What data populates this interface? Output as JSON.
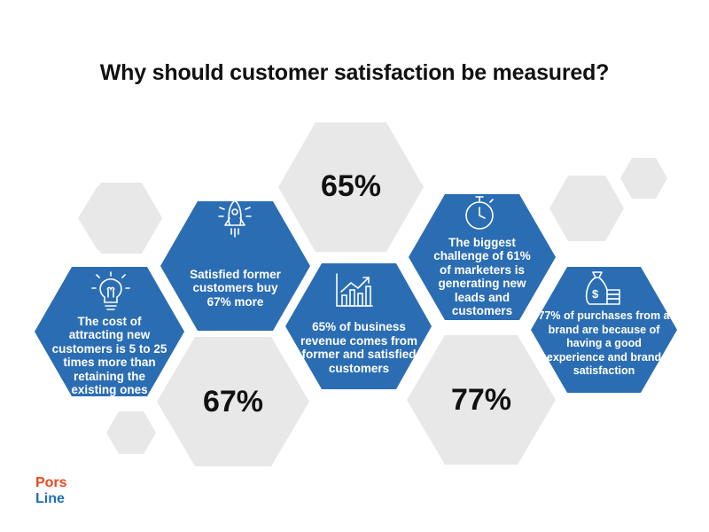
{
  "title": "Why should customer satisfaction be measured?",
  "colors": {
    "blue_hex": "#2b6db3",
    "gray_hex": "#e8e8e8",
    "text_white": "#ffffff",
    "logo_red": "#e8491d",
    "logo_blue": "#1f6fb2"
  },
  "facts": [
    {
      "icon": "lightbulb-icon",
      "text": "The cost of attracting new customers is 5 to 25  times more than retaining the existing ones"
    },
    {
      "icon": "rocket-icon",
      "text": "Satisfied former customers buy 67% more"
    },
    {
      "icon": "growth-chart-icon",
      "text": "65% of business revenue comes from former and satisfied customers"
    },
    {
      "icon": "stopwatch-icon",
      "text": "The biggest challenge of 61% of marketers is generating new leads and customers"
    },
    {
      "icon": "money-bag-icon",
      "text": "77% of purchases from a brand are because of having a good experience and brand satisfaction"
    }
  ],
  "stats": [
    "65%",
    "67%",
    "77%"
  ],
  "logo": {
    "line1": "Pors",
    "line2": "Line"
  }
}
